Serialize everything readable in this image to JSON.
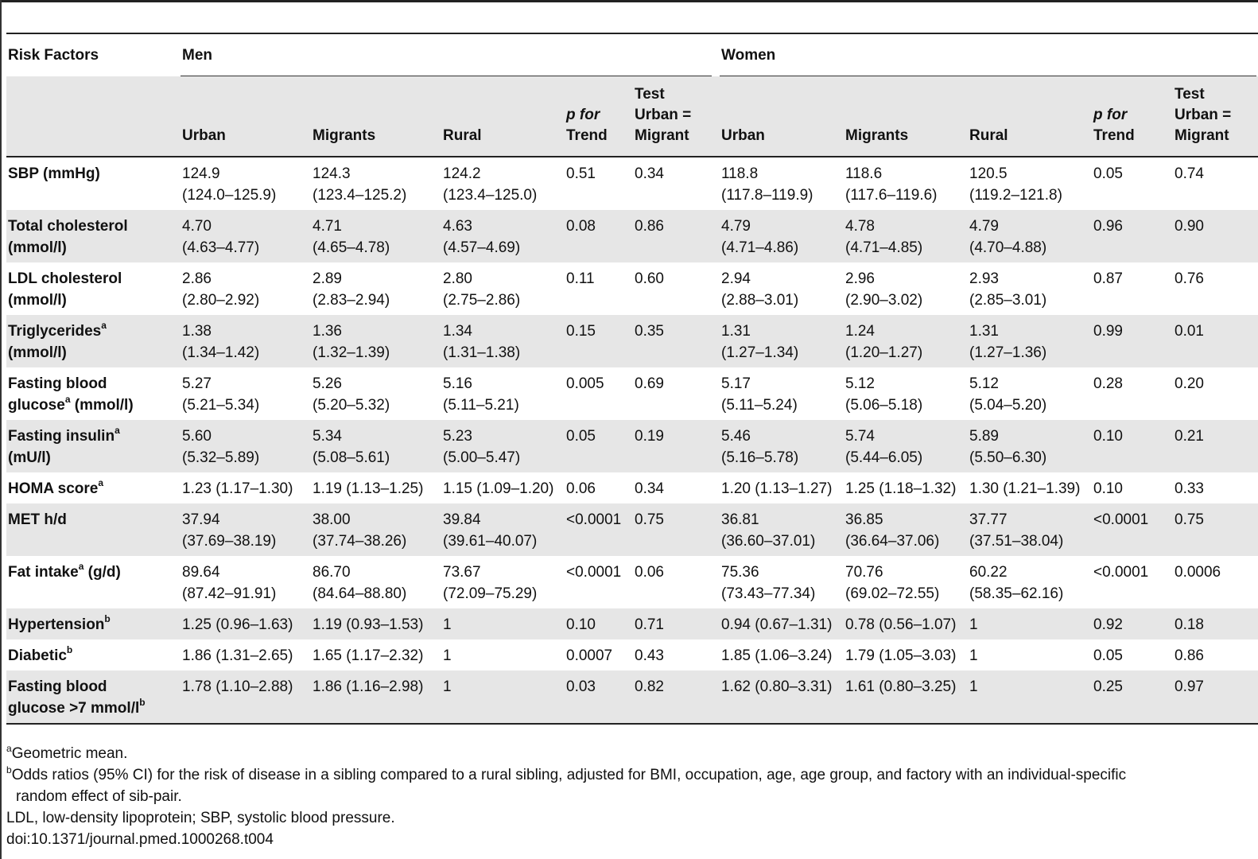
{
  "table": {
    "headers": {
      "risk_factors": "Risk Factors",
      "men": "Men",
      "women": "Women",
      "urban": "Urban",
      "migrants": "Migrants",
      "rural": "Rural",
      "p_trend_1": "p for",
      "p_trend_2": "Trend",
      "test_1": "Test",
      "test_2": "Urban =",
      "test_3": "Migrant"
    },
    "rows": [
      {
        "rf": [
          "SBP (mmHg)"
        ],
        "rf_sup": "",
        "men": [
          [
            "124.9",
            "(124.0–125.9)"
          ],
          [
            "124.3",
            "(123.4–125.2)"
          ],
          [
            "124.2",
            "(123.4–125.0)"
          ],
          [
            "0.51"
          ],
          [
            "0.34"
          ]
        ],
        "women": [
          [
            "118.8",
            "(117.8–119.9)"
          ],
          [
            "118.6",
            "(117.6–119.6)"
          ],
          [
            "120.5",
            "(119.2–121.8)"
          ],
          [
            "0.05"
          ],
          [
            "0.74"
          ]
        ]
      },
      {
        "rf": [
          "Total cholesterol",
          "(mmol/l)"
        ],
        "men": [
          [
            "4.70",
            "(4.63–4.77)"
          ],
          [
            "4.71",
            "(4.65–4.78)"
          ],
          [
            "4.63",
            "(4.57–4.69)"
          ],
          [
            "0.08"
          ],
          [
            "0.86"
          ]
        ],
        "women": [
          [
            "4.79",
            "(4.71–4.86)"
          ],
          [
            "4.78",
            "(4.71–4.85)"
          ],
          [
            "4.79",
            "(4.70–4.88)"
          ],
          [
            "0.96"
          ],
          [
            "0.90"
          ]
        ]
      },
      {
        "rf": [
          "LDL cholesterol",
          "(mmol/l)"
        ],
        "men": [
          [
            "2.86",
            "(2.80–2.92)"
          ],
          [
            "2.89",
            "(2.83–2.94)"
          ],
          [
            "2.80",
            "(2.75–2.86)"
          ],
          [
            "0.11"
          ],
          [
            "0.60"
          ]
        ],
        "women": [
          [
            "2.94",
            "(2.88–3.01)"
          ],
          [
            "2.96",
            "(2.90–3.02)"
          ],
          [
            "2.93",
            "(2.85–3.01)"
          ],
          [
            "0.87"
          ],
          [
            "0.76"
          ]
        ]
      },
      {
        "rf": [
          "Triglycerides",
          "(mmol/l)"
        ],
        "men": [
          [
            "1.38",
            "(1.34–1.42)"
          ],
          [
            "1.36",
            "(1.32–1.39)"
          ],
          [
            "1.34",
            "(1.31–1.38)"
          ],
          [
            "0.15"
          ],
          [
            "0.35"
          ]
        ],
        "women": [
          [
            "1.31",
            "(1.27–1.34)"
          ],
          [
            "1.24",
            "(1.20–1.27)"
          ],
          [
            "1.31",
            "(1.27–1.36)"
          ],
          [
            "0.99"
          ],
          [
            "0.01"
          ]
        ]
      },
      {
        "rf": [
          "Fasting blood",
          "glucose",
          " (mmol/l)"
        ],
        "men": [
          [
            "5.27",
            "(5.21–5.34)"
          ],
          [
            "5.26",
            "(5.20–5.32)"
          ],
          [
            "5.16",
            "(5.11–5.21)"
          ],
          [
            "0.005"
          ],
          [
            "0.69"
          ]
        ],
        "women": [
          [
            "5.17",
            "(5.11–5.24)"
          ],
          [
            "5.12",
            "(5.06–5.18)"
          ],
          [
            "5.12",
            "(5.04–5.20)"
          ],
          [
            "0.28"
          ],
          [
            "0.20"
          ]
        ]
      },
      {
        "rf": [
          "Fasting insulin",
          "(mU/l)"
        ],
        "men": [
          [
            "5.60",
            "(5.32–5.89)"
          ],
          [
            "5.34",
            "(5.08–5.61)"
          ],
          [
            "5.23",
            "(5.00–5.47)"
          ],
          [
            "0.05"
          ],
          [
            "0.19"
          ]
        ],
        "women": [
          [
            "5.46",
            "(5.16–5.78)"
          ],
          [
            "5.74",
            "(5.44–6.05)"
          ],
          [
            "5.89",
            "(5.50–6.30)"
          ],
          [
            "0.10"
          ],
          [
            "0.21"
          ]
        ]
      },
      {
        "rf": [
          "HOMA score"
        ],
        "men": [
          [
            "1.23 (1.17–1.30)"
          ],
          [
            "1.19 (1.13–1.25)"
          ],
          [
            "1.15 (1.09–1.20)"
          ],
          [
            "0.06"
          ],
          [
            "0.34"
          ]
        ],
        "women": [
          [
            "1.20 (1.13–1.27)"
          ],
          [
            "1.25 (1.18–1.32)"
          ],
          [
            "1.30 (1.21–1.39)"
          ],
          [
            "0.10"
          ],
          [
            "0.33"
          ]
        ]
      },
      {
        "rf": [
          "MET h/d"
        ],
        "men": [
          [
            "37.94",
            "(37.69–38.19)"
          ],
          [
            "38.00",
            "(37.74–38.26)"
          ],
          [
            "39.84",
            "(39.61–40.07)"
          ],
          [
            "<0.0001"
          ],
          [
            "0.75"
          ]
        ],
        "women": [
          [
            "36.81",
            "(36.60–37.01)"
          ],
          [
            "36.85",
            "(36.64–37.06)"
          ],
          [
            "37.77",
            "(37.51–38.04)"
          ],
          [
            "<0.0001"
          ],
          [
            "0.75"
          ]
        ]
      },
      {
        "rf": [
          "Fat intake",
          " (g/d)"
        ],
        "men": [
          [
            "89.64",
            "(87.42–91.91)"
          ],
          [
            "86.70",
            "(84.64–88.80)"
          ],
          [
            "73.67",
            "(72.09–75.29)"
          ],
          [
            "<0.0001"
          ],
          [
            "0.06"
          ]
        ],
        "women": [
          [
            "75.36",
            "(73.43–77.34)"
          ],
          [
            "70.76",
            "(69.02–72.55)"
          ],
          [
            "60.22",
            "(58.35–62.16)"
          ],
          [
            "<0.0001"
          ],
          [
            "0.0006"
          ]
        ]
      },
      {
        "rf": [
          "Hypertension"
        ],
        "men": [
          [
            "1.25 (0.96–1.63)"
          ],
          [
            "1.19 (0.93–1.53)"
          ],
          [
            "1"
          ],
          [
            "0.10"
          ],
          [
            "0.71"
          ]
        ],
        "women": [
          [
            "0.94 (0.67–1.31)"
          ],
          [
            "0.78 (0.56–1.07)"
          ],
          [
            "1"
          ],
          [
            "0.92"
          ],
          [
            "0.18"
          ]
        ]
      },
      {
        "rf": [
          "Diabetic"
        ],
        "men": [
          [
            "1.86 (1.31–2.65)"
          ],
          [
            "1.65 (1.17–2.32)"
          ],
          [
            "1"
          ],
          [
            "0.0007"
          ],
          [
            "0.43"
          ]
        ],
        "women": [
          [
            "1.85 (1.06–3.24)"
          ],
          [
            "1.79 (1.05–3.03)"
          ],
          [
            "1"
          ],
          [
            "0.05"
          ],
          [
            "0.86"
          ]
        ]
      },
      {
        "rf": [
          "Fasting blood",
          "glucose >7 mmol/l"
        ],
        "men": [
          [
            "1.78 (1.10–2.88)"
          ],
          [
            "1.86 (1.16–2.98)"
          ],
          [
            "1"
          ],
          [
            "0.03"
          ],
          [
            "0.82"
          ]
        ],
        "women": [
          [
            "1.62 (0.80–3.31)"
          ],
          [
            "1.61 (0.80–3.25)"
          ],
          [
            "1"
          ],
          [
            "0.25"
          ],
          [
            "0.97"
          ]
        ]
      }
    ],
    "superscripts": {
      "a": "a",
      "b": "b"
    }
  },
  "footnotes": {
    "a_mark": "a",
    "a_text": "Geometric mean.",
    "b_mark": "b",
    "b_text_1": "Odds ratios (95% CI) for the risk of disease in a sibling compared to a rural sibling, adjusted for BMI, occupation, age, age group, and factory with an individual-specific",
    "b_text_2": "random effect of sib-pair.",
    "abbrev": "LDL, low-density lipoprotein; SBP, systolic blood pressure.",
    "doi": "doi:10.1371/journal.pmed.1000268.t004"
  }
}
